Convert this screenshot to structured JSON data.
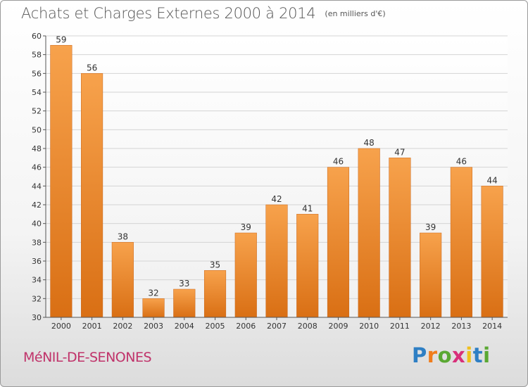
{
  "chart_data": {
    "type": "bar",
    "title": "Achats et Charges Externes 2000 à 2014",
    "subtitle": "(en milliers d'€)",
    "categories": [
      "2000",
      "2001",
      "2002",
      "2003",
      "2004",
      "2005",
      "2006",
      "2007",
      "2008",
      "2009",
      "2010",
      "2011",
      "2012",
      "2013",
      "2014"
    ],
    "values": [
      59,
      56,
      38,
      32,
      33,
      35,
      39,
      42,
      41,
      46,
      48,
      47,
      39,
      46,
      44
    ],
    "ylim": [
      30,
      60
    ],
    "yticks": [
      30,
      32,
      34,
      36,
      38,
      40,
      42,
      44,
      46,
      48,
      50,
      52,
      54,
      56,
      58,
      60
    ],
    "grid": true,
    "bar_color": "#f08a2a"
  },
  "commune": "MéNIL-DE-SENONES",
  "logo": {
    "letters": [
      "P",
      "r",
      "o",
      "x",
      "i",
      "t",
      "i"
    ],
    "colors": [
      "#2e7fc4",
      "#f07d1c",
      "#5aa832",
      "#d8307a",
      "#f0c01c",
      "#2e7fc4",
      "#5aa832"
    ]
  }
}
